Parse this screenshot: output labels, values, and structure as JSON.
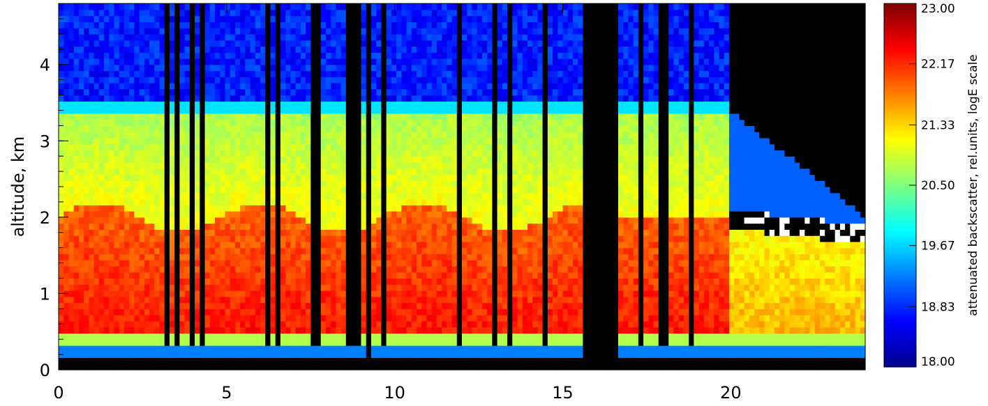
{
  "chart_data": {
    "type": "heatmap",
    "title": "",
    "xlabel": "",
    "ylabel": "altitude, km",
    "xlim": [
      0,
      24
    ],
    "ylim": [
      0,
      4.8
    ],
    "x_ticks": [
      0,
      5,
      10,
      15,
      20
    ],
    "y_ticks": [
      0,
      1,
      2,
      3,
      4
    ],
    "colorbar": {
      "label": "attenuated backscatter, rel.units, logE scale",
      "min": 18.0,
      "max": 23.0,
      "tick_values": [
        18.0,
        18.83,
        19.67,
        20.5,
        21.33,
        22.17,
        23.0
      ],
      "tick_labels": [
        "18.00",
        "18.83",
        "19.67",
        "20.50",
        "21.33",
        "22.17",
        "23.00"
      ],
      "colormap": "jet"
    },
    "data_gaps_hours": [
      [
        9.1,
        9.35
      ],
      [
        15.6,
        16.6
      ]
    ],
    "approx_layer_tops_km": {
      "boundary_layer_0_to_15h": 2.0,
      "residual_layer_0_to_20h": 3.4,
      "cloud_base_20_to_24h": 2.0
    },
    "grid": false,
    "legend": "none"
  },
  "colors": {
    "jet": [
      "#00008f",
      "#0000ff",
      "#007fff",
      "#00ffff",
      "#7fff7f",
      "#ffff00",
      "#ff7f00",
      "#ff0000",
      "#7f0000"
    ],
    "no_data": "#000000",
    "saturated": "#ffffff"
  }
}
